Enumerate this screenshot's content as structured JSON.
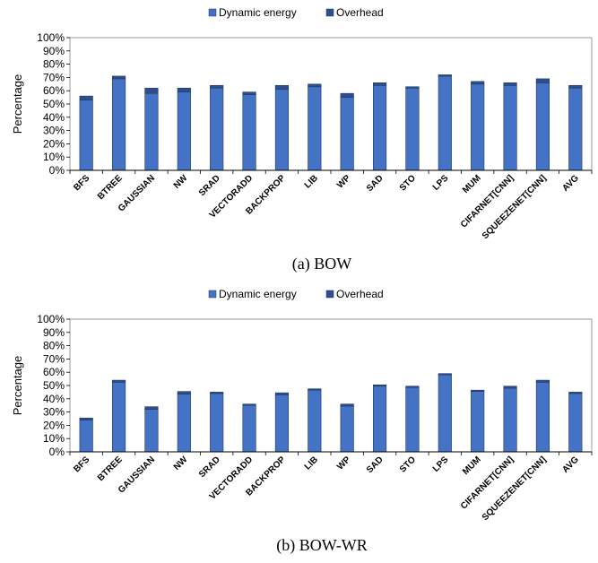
{
  "colors": {
    "dynamic": "#4472C4",
    "overhead": "#2F4F8C",
    "axis": "#000000",
    "grid": "#D9D9D9"
  },
  "chart_data": [
    {
      "type": "bar",
      "stacked": true,
      "caption": "(a) BOW",
      "ylabel": "Percentage",
      "ylim": [
        0,
        100
      ],
      "yticks": [
        "0%",
        "10%",
        "20%",
        "30%",
        "40%",
        "50%",
        "60%",
        "70%",
        "80%",
        "90%",
        "100%"
      ],
      "legend": {
        "position": "top",
        "entries": [
          "Dynamic energy",
          "Overhead"
        ]
      },
      "categories": [
        "BFS",
        "BTREE",
        "GAUSSIAN",
        "NW",
        "SRAD",
        "VECTORADD",
        "BACKPROP",
        "LIB",
        "WP",
        "SAD",
        "STO",
        "LPS",
        "MUM",
        "CIFARNET[CNN]",
        "SQUEEZENET[CNN]",
        "AVG"
      ],
      "series": [
        {
          "name": "Dynamic energy",
          "values": [
            53,
            69,
            58,
            59,
            62,
            57,
            61,
            63,
            55,
            64,
            62,
            71,
            65,
            64,
            66,
            62
          ]
        },
        {
          "name": "Overhead",
          "values": [
            3,
            2,
            4,
            3,
            2,
            2,
            3,
            2,
            3,
            2,
            1,
            1,
            2,
            2,
            3,
            2
          ]
        }
      ]
    },
    {
      "type": "bar",
      "stacked": true,
      "caption": "(b) BOW-WR",
      "ylabel": "Percentage",
      "ylim": [
        0,
        100
      ],
      "yticks": [
        "0%",
        "10%",
        "20%",
        "30%",
        "40%",
        "50%",
        "60%",
        "70%",
        "80%",
        "90%",
        "100%"
      ],
      "legend": {
        "position": "top",
        "entries": [
          "Dynamic energy",
          "Overhead"
        ]
      },
      "categories": [
        "BFS",
        "BTREE",
        "GAUSSIAN",
        "NW",
        "SRAD",
        "VECTORADD",
        "BACKPROP",
        "LIB",
        "WP",
        "SAD",
        "STO",
        "LPS",
        "MUM",
        "CIFARNET[CNN]",
        "SQUEEZENET[CNN]",
        "AVG"
      ],
      "series": [
        {
          "name": "Dynamic energy",
          "values": [
            24,
            52.5,
            32,
            43.5,
            44,
            35,
            43,
            46.5,
            34.5,
            49.5,
            48.5,
            58,
            45.5,
            48,
            52.5,
            44
          ]
        },
        {
          "name": "Overhead",
          "values": [
            1.5,
            1.5,
            2,
            2,
            1,
            1,
            1.5,
            1,
            1.5,
            1,
            1,
            1,
            1,
            1.5,
            1.5,
            1
          ]
        }
      ]
    }
  ]
}
